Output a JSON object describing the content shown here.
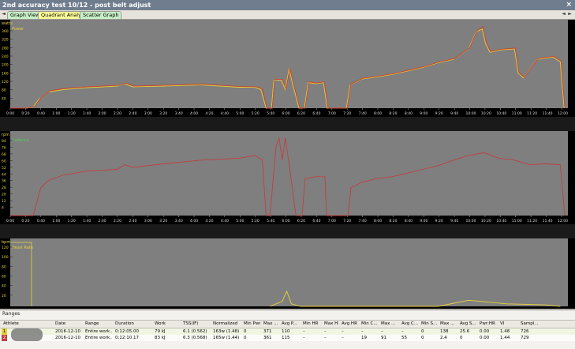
{
  "window": {
    "title": "2nd accuracy test 10/12 - post belt adjust"
  },
  "nav": {
    "left": "◄",
    "right": "►"
  },
  "tabs": [
    {
      "label": "Graph View"
    },
    {
      "label": "Quadrant Analysis"
    },
    {
      "label": "Scatter Graph"
    }
  ],
  "colors": {
    "power": "#e8d23a",
    "power2": "#d04028",
    "cadence": "#c04040",
    "grid": "#111111",
    "plot_bg": "#7f7f7f"
  },
  "chart_data": [
    {
      "type": "line",
      "units": "watts",
      "legend": [
        "Power"
      ],
      "ylim": [
        0,
        360
      ],
      "yticks": [
        "360",
        "320",
        "280",
        "240",
        "200",
        "160",
        "120",
        "80",
        "40"
      ],
      "xticks": [
        "0:00",
        "0:20",
        "0:40",
        "1:00",
        "1:20",
        "1:40",
        "2:00",
        "2:20",
        "2:40",
        "3:00",
        "3:20",
        "3:40",
        "4:00",
        "4:20",
        "4:40",
        "5:00",
        "5:20",
        "5:40",
        "6:00",
        "6:20",
        "6:40",
        "7:00",
        "7:20",
        "7:40",
        "8:00",
        "8:20",
        "8:40",
        "9:00",
        "9:20",
        "9:40",
        "10:00",
        "10:20",
        "10:40",
        "11:00",
        "11:20",
        "11:40",
        "12:00"
      ],
      "xlim_sec": [
        0,
        730
      ],
      "series": [
        {
          "values": [
            [
              0,
              0
            ],
            [
              20,
              0
            ],
            [
              30,
              5
            ],
            [
              38,
              40
            ],
            [
              50,
              70
            ],
            [
              70,
              80
            ],
            [
              100,
              88
            ],
            [
              140,
              95
            ],
            [
              150,
              105
            ],
            [
              160,
              92
            ],
            [
              200,
              95
            ],
            [
              250,
              100
            ],
            [
              300,
              90
            ],
            [
              320,
              90
            ],
            [
              328,
              80
            ],
            [
              335,
              0
            ],
            [
              342,
              0
            ],
            [
              345,
              120
            ],
            [
              355,
              120
            ],
            [
              360,
              80
            ],
            [
              365,
              170
            ],
            [
              370,
              100
            ],
            [
              378,
              0
            ],
            [
              385,
              0
            ],
            [
              390,
              110
            ],
            [
              400,
              105
            ],
            [
              410,
              110
            ],
            [
              415,
              0
            ],
            [
              440,
              0
            ],
            [
              445,
              100
            ],
            [
              460,
              125
            ],
            [
              480,
              135
            ],
            [
              500,
              145
            ],
            [
              520,
              160
            ],
            [
              540,
              175
            ],
            [
              560,
              195
            ],
            [
              580,
              210
            ],
            [
              600,
              255
            ],
            [
              610,
              330
            ],
            [
              618,
              340
            ],
            [
              622,
              280
            ],
            [
              628,
              240
            ],
            [
              640,
              250
            ],
            [
              660,
              255
            ],
            [
              665,
              150
            ],
            [
              672,
              130
            ],
            [
              690,
              210
            ],
            [
              710,
              220
            ],
            [
              720,
              200
            ],
            [
              725,
              0
            ]
          ]
        },
        {
          "values": [
            [
              0,
              0
            ],
            [
              22,
              0
            ],
            [
              32,
              8
            ],
            [
              40,
              45
            ],
            [
              52,
              75
            ],
            [
              72,
              85
            ],
            [
              102,
              92
            ],
            [
              142,
              98
            ],
            [
              152,
              108
            ],
            [
              162,
              95
            ],
            [
              202,
              98
            ],
            [
              252,
              103
            ],
            [
              302,
              93
            ],
            [
              322,
              92
            ],
            [
              330,
              83
            ],
            [
              336,
              0
            ],
            [
              343,
              0
            ],
            [
              346,
              123
            ],
            [
              356,
              125
            ],
            [
              361,
              83
            ],
            [
              366,
              172
            ],
            [
              371,
              103
            ],
            [
              379,
              0
            ],
            [
              386,
              0
            ],
            [
              391,
              113
            ],
            [
              401,
              108
            ],
            [
              411,
              113
            ],
            [
              416,
              0
            ],
            [
              441,
              0
            ],
            [
              446,
              103
            ],
            [
              461,
              128
            ],
            [
              481,
              138
            ],
            [
              501,
              148
            ],
            [
              521,
              163
            ],
            [
              541,
              178
            ],
            [
              561,
              198
            ],
            [
              581,
              213
            ],
            [
              601,
              258
            ],
            [
              611,
              333
            ],
            [
              619,
              350
            ],
            [
              623,
              283
            ],
            [
              629,
              243
            ],
            [
              641,
              253
            ],
            [
              661,
              258
            ],
            [
              666,
              153
            ],
            [
              673,
              133
            ],
            [
              691,
              213
            ],
            [
              711,
              223
            ],
            [
              721,
              203
            ],
            [
              726,
              0
            ]
          ]
        }
      ]
    },
    {
      "type": "line",
      "units": "rpm",
      "legend": [
        "Cadence"
      ],
      "ylim": [
        0,
        88
      ],
      "yticks": [
        "84",
        "76",
        "68",
        "60",
        "52",
        "44",
        "36",
        "28",
        "20",
        "12",
        "4"
      ],
      "xticks": [
        "0:00",
        "0:20",
        "0:40",
        "1:00",
        "1:20",
        "1:40",
        "2:00",
        "2:20",
        "2:40",
        "3:00",
        "3:20",
        "3:40",
        "4:00",
        "4:20",
        "4:40",
        "5:00",
        "5:20",
        "5:40",
        "6:00",
        "6:20",
        "6:40",
        "7:00",
        "7:20",
        "7:40",
        "8:00",
        "8:20",
        "8:40",
        "9:00",
        "9:20",
        "9:40",
        "10:00",
        "10:20",
        "10:40",
        "11:00",
        "11:20",
        "11:40",
        "12:00"
      ],
      "xlim_sec": [
        0,
        730
      ],
      "series": [
        {
          "values": [
            [
              0,
              0
            ],
            [
              30,
              0
            ],
            [
              40,
              30
            ],
            [
              50,
              38
            ],
            [
              70,
              44
            ],
            [
              100,
              48
            ],
            [
              140,
              50
            ],
            [
              150,
              55
            ],
            [
              160,
              52
            ],
            [
              200,
              56
            ],
            [
              250,
              60
            ],
            [
              300,
              62
            ],
            [
              320,
              65
            ],
            [
              330,
              60
            ],
            [
              335,
              0
            ],
            [
              340,
              0
            ],
            [
              348,
              75
            ],
            [
              352,
              84
            ],
            [
              356,
              60
            ],
            [
              360,
              84
            ],
            [
              366,
              50
            ],
            [
              374,
              0
            ],
            [
              382,
              0
            ],
            [
              386,
              40
            ],
            [
              400,
              42
            ],
            [
              412,
              42
            ],
            [
              414,
              0
            ],
            [
              442,
              0
            ],
            [
              446,
              30
            ],
            [
              460,
              36
            ],
            [
              480,
              40
            ],
            [
              500,
              42
            ],
            [
              520,
              46
            ],
            [
              540,
              50
            ],
            [
              560,
              54
            ],
            [
              580,
              60
            ],
            [
              600,
              65
            ],
            [
              620,
              68
            ],
            [
              640,
              62
            ],
            [
              660,
              60
            ],
            [
              680,
              55
            ],
            [
              700,
              56
            ],
            [
              720,
              55
            ],
            [
              726,
              0
            ]
          ]
        }
      ]
    },
    {
      "type": "line",
      "units": "bpm",
      "legend": [
        "Heart Rate"
      ],
      "yticks": [
        "120",
        "100",
        "80",
        "60",
        "40",
        "20"
      ],
      "xlim_sec": [
        0,
        730
      ],
      "series": [
        {
          "values": [
            [
              340,
              0
            ],
            [
              356,
              10
            ],
            [
              362,
              30
            ],
            [
              368,
              5
            ],
            [
              380,
              0
            ],
            [
              560,
              0
            ],
            [
              600,
              12
            ],
            [
              650,
              5
            ],
            [
              700,
              3
            ],
            [
              720,
              0
            ]
          ]
        }
      ]
    }
  ],
  "ranges": {
    "title": "Ranges",
    "headers": [
      "Athlete",
      "Date",
      "Range",
      "Duration",
      "Work",
      "TSS(IF)",
      "Normalized",
      "Min Pwr",
      "Max ...",
      "Avg P...",
      "Min HR",
      "Max HR",
      "Avg HR",
      "Min C...",
      "Max ...",
      "Avg C...",
      "Min S...",
      "Max ...",
      "Avg S...",
      "Pwr:HR",
      "VI",
      "Sampl..."
    ],
    "rows": [
      {
        "id": "1",
        "cells": [
          "",
          "2016-12-10",
          "Entire work...",
          "0:12:05.00",
          "79 kJ",
          "6.1 (0.562)",
          "163w (1.48)",
          "0",
          "371",
          "110",
          "–",
          "–",
          "–",
          "–",
          "–",
          "–",
          "0",
          "138",
          "25.6",
          "0.00",
          "1.48",
          "726"
        ]
      },
      {
        "id": "2",
        "cells": [
          "",
          "2016-12-10",
          "Entire work...",
          "0:12:10.17",
          "83 kJ",
          "6.3 (0.568)",
          "165w (1.44)",
          "0",
          "361",
          "115",
          "–",
          "–",
          "–",
          "19",
          "91",
          "55",
          "0",
          "2.4",
          "0",
          "0.00",
          "1.44",
          "729"
        ]
      }
    ]
  }
}
